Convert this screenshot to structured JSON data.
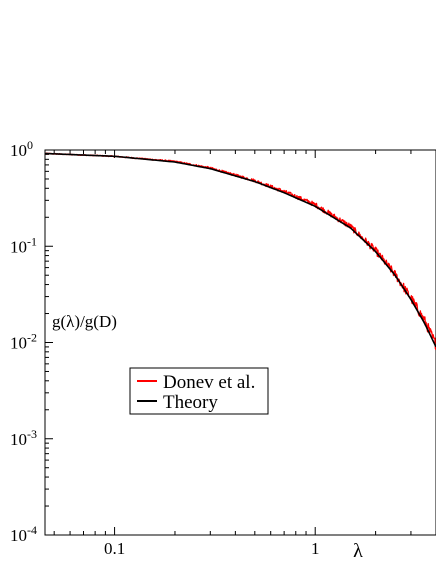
{
  "chart_data": {
    "type": "line",
    "title": "",
    "xlabel": "λ",
    "ylabel": "g(λ)/g(D)",
    "xscale": "log",
    "yscale": "log",
    "xlim": [
      0.045,
      4.0
    ],
    "ylim": [
      0.0001,
      1.0
    ],
    "x_tick_labels": [
      {
        "value": 0.1,
        "label": "0.1"
      },
      {
        "value": 1,
        "label": "1"
      }
    ],
    "y_tick_labels": [
      {
        "value": 1,
        "base": "10",
        "exp": "0"
      },
      {
        "value": 0.1,
        "base": "10",
        "exp": "-1"
      },
      {
        "value": 0.01,
        "base": "10",
        "exp": "-2"
      },
      {
        "value": 0.001,
        "base": "10",
        "exp": "-3"
      },
      {
        "value": 0.0001,
        "base": "10",
        "exp": "-4"
      }
    ],
    "grid": false,
    "legend_position": "lower-left",
    "series": [
      {
        "name": "Donev et al.",
        "color": "#ff0000",
        "noisy": true,
        "x": [
          0.045,
          0.1,
          0.2,
          0.3,
          0.5,
          0.7,
          1.0,
          1.5,
          2.0,
          2.5,
          3.0,
          3.5,
          4.0
        ],
        "y": [
          0.92,
          0.86,
          0.76,
          0.65,
          0.48,
          0.37,
          0.27,
          0.16,
          0.09,
          0.051,
          0.029,
          0.017,
          0.0095
        ]
      },
      {
        "name": "Theory",
        "color": "#000000",
        "noisy": false,
        "x": [
          0.045,
          0.1,
          0.2,
          0.3,
          0.5,
          0.7,
          1.0,
          1.5,
          2.0,
          2.5,
          3.0,
          3.5,
          4.0
        ],
        "y": [
          0.92,
          0.86,
          0.75,
          0.64,
          0.47,
          0.36,
          0.26,
          0.155,
          0.088,
          0.05,
          0.028,
          0.016,
          0.009
        ]
      }
    ]
  }
}
